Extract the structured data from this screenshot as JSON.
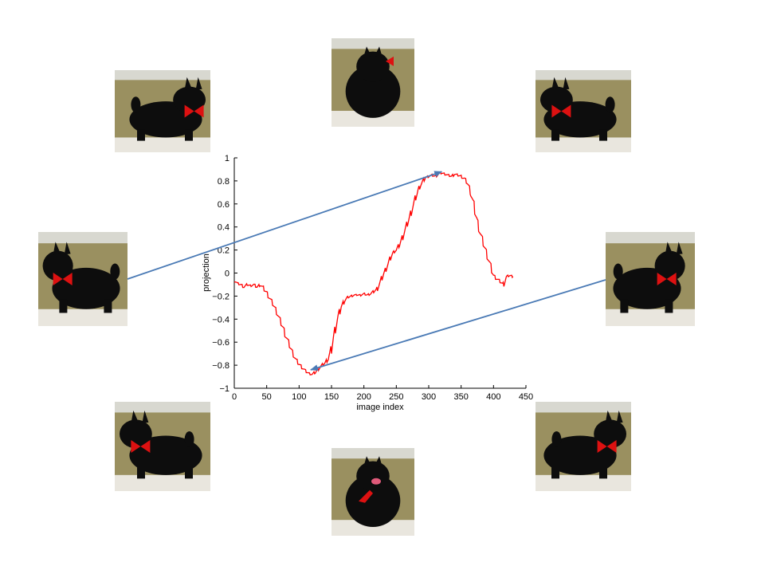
{
  "colors": {
    "curve": "#ff0000",
    "arrow": "#4a7ab5",
    "dog_fur": "#0d0d0d",
    "ribbon": "#dd1111",
    "wall": "#9a9060",
    "floor": "#e9e6de"
  },
  "thumbnails": [
    {
      "icon": "scottie-dog-photo",
      "view": "back-left"
    },
    {
      "icon": "scottie-dog-photo",
      "view": "back"
    },
    {
      "icon": "scottie-dog-photo",
      "view": "back-right"
    },
    {
      "icon": "scottie-dog-photo",
      "view": "left-side"
    },
    {
      "icon": "scottie-dog-photo",
      "view": "right-side"
    },
    {
      "icon": "scottie-dog-photo",
      "view": "front-left"
    },
    {
      "icon": "scottie-dog-photo",
      "view": "front"
    },
    {
      "icon": "scottie-dog-photo",
      "view": "front-right"
    }
  ],
  "chart_data": {
    "type": "line",
    "title": "",
    "xlabel": "image index",
    "ylabel": "projection",
    "xlim": [
      0,
      450
    ],
    "ylim": [
      -1,
      1
    ],
    "xticks": [
      0,
      50,
      100,
      150,
      200,
      250,
      300,
      350,
      400,
      450
    ],
    "yticks": [
      -1,
      -0.8,
      -0.6,
      -0.4,
      -0.2,
      0,
      0.2,
      0.4,
      0.6,
      0.8,
      1
    ],
    "grid": false,
    "series": [
      {
        "x": [
          0,
          5,
          10,
          15,
          20,
          25,
          30,
          35,
          40,
          45,
          50,
          55,
          60,
          65,
          70,
          75,
          80,
          85,
          90,
          95,
          100,
          105,
          110,
          115,
          120,
          125,
          130,
          135,
          140,
          145,
          150,
          155,
          160,
          165,
          170,
          175,
          180,
          185,
          190,
          195,
          200,
          205,
          210,
          215,
          220,
          225,
          230,
          235,
          240,
          245,
          250,
          255,
          260,
          265,
          270,
          275,
          280,
          285,
          290,
          295,
          300,
          305,
          310,
          315,
          320,
          325,
          330,
          335,
          340,
          345,
          350,
          355,
          360,
          365,
          370,
          375,
          380,
          385,
          390,
          395,
          400,
          405,
          410,
          415,
          420,
          425,
          430
        ],
        "y": [
          -0.06,
          -0.09,
          -0.1,
          -0.12,
          -0.1,
          -0.11,
          -0.1,
          -0.12,
          -0.1,
          -0.13,
          -0.17,
          -0.22,
          -0.27,
          -0.33,
          -0.4,
          -0.47,
          -0.55,
          -0.62,
          -0.69,
          -0.75,
          -0.79,
          -0.82,
          -0.85,
          -0.87,
          -0.88,
          -0.86,
          -0.83,
          -0.8,
          -0.78,
          -0.74,
          -0.65,
          -0.5,
          -0.38,
          -0.29,
          -0.24,
          -0.21,
          -0.2,
          -0.19,
          -0.19,
          -0.19,
          -0.18,
          -0.19,
          -0.18,
          -0.16,
          -0.14,
          -0.08,
          -0.01,
          0.05,
          0.12,
          0.18,
          0.2,
          0.25,
          0.32,
          0.4,
          0.48,
          0.57,
          0.66,
          0.74,
          0.79,
          0.83,
          0.84,
          0.85,
          0.84,
          0.86,
          0.87,
          0.86,
          0.85,
          0.84,
          0.86,
          0.85,
          0.84,
          0.82,
          0.78,
          0.7,
          0.58,
          0.45,
          0.34,
          0.25,
          0.16,
          0.07,
          -0.02,
          -0.05,
          -0.07,
          -0.1,
          -0.03,
          -0.02,
          -0.03
        ]
      }
    ],
    "annotations": [
      {
        "type": "arrow",
        "from_thumbnail": "left-side",
        "to": [
          320,
          0.88
        ]
      },
      {
        "type": "arrow",
        "from_thumbnail": "right-side",
        "to": [
          118,
          -0.84
        ]
      }
    ]
  }
}
